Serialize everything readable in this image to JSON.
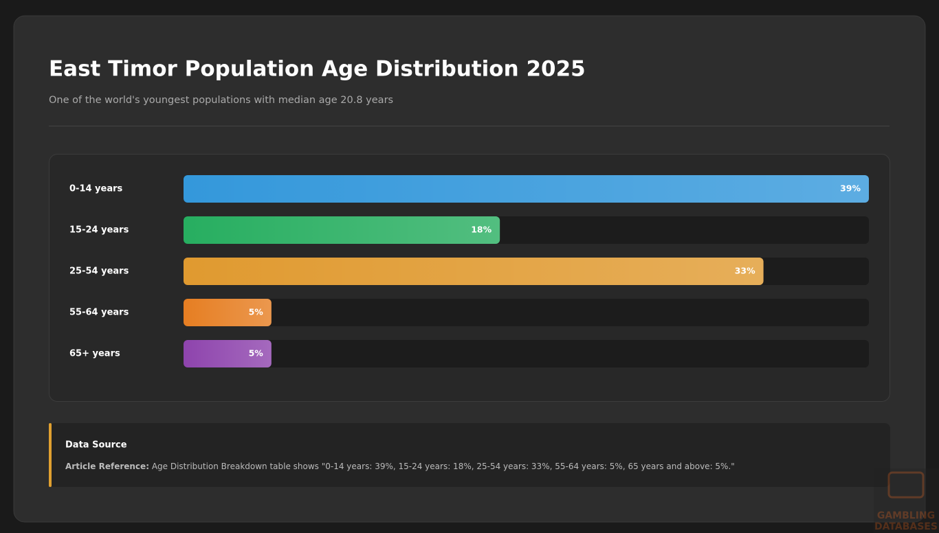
{
  "chart_data": {
    "type": "hbar",
    "title": "East Timor Population Age Distribution 2025",
    "subtitle": "One of the world's youngest populations with median age 20.8 years",
    "categories": [
      "0-14 years",
      "15-24 years",
      "25-54 years",
      "55-64 years",
      "65+ years"
    ],
    "values": [
      39,
      18,
      33,
      5,
      5
    ],
    "value_labels": [
      "39%",
      "18%",
      "33%",
      "5%",
      "5%"
    ],
    "colors": [
      "#3498db",
      "#27ae60",
      "#e09a30",
      "#e67e22",
      "#8e44ad"
    ]
  },
  "source": {
    "heading": "Data Source",
    "label": "Article Reference:",
    "text": "Age Distribution Breakdown table shows \"0-14 years: 39%, 15-24 years: 18%, 25-54 years: 33%, 55-64 years: 5%, 65 years and above: 5%.\""
  },
  "watermark": [
    "GAMBLING",
    "DATABASES"
  ]
}
